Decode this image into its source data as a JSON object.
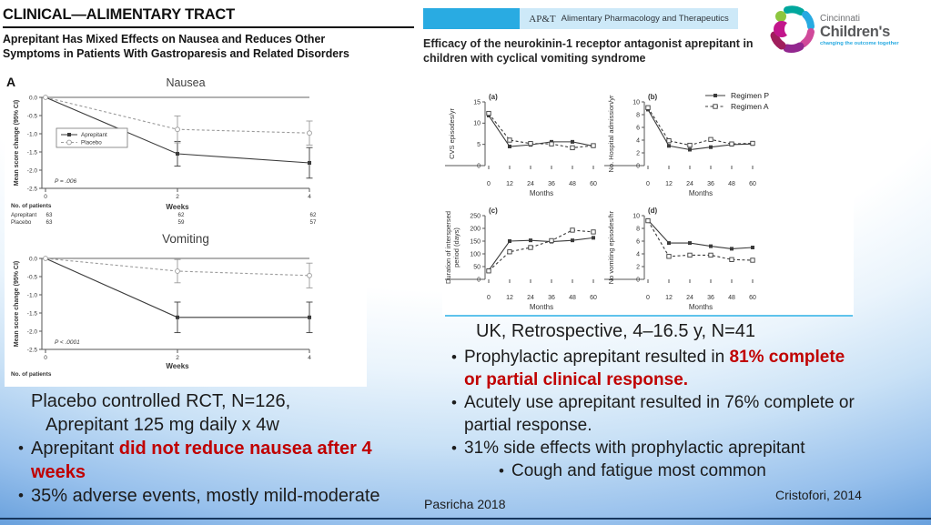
{
  "colors": {
    "accent_red": "#c00000",
    "banner_cyan": "#29abe2",
    "banner_light": "#cde9f8",
    "divider_blue": "#5fc3ec",
    "gradient_bottom": "#4f8cd1",
    "navy_line": "#17375e"
  },
  "left_panel": {
    "journal_header": "CLINICAL—ALIMENTARY TRACT",
    "article_title_line1": "Aprepitant Has Mixed Effects on Nausea and Reduces Other",
    "article_title_line2": "Symptoms in Patients With Gastroparesis and Related Disorders",
    "figure_label": "A",
    "nausea_title": "Nausea",
    "vomiting_title": "Vomiting",
    "summary_line1": "Placebo controlled RCT, N=126,",
    "summary_line2": "Aprepitant 125 mg daily x 4w",
    "bullets": [
      {
        "indent": 0,
        "segments": [
          {
            "text": "Aprepitant ",
            "style": "normal"
          },
          {
            "text": "did not reduce nausea after 4 weeks",
            "style": "red"
          }
        ]
      },
      {
        "indent": 0,
        "segments": [
          {
            "text": "35% adverse events, mostly mild-moderate",
            "style": "normal"
          }
        ]
      }
    ],
    "citation": "Pasricha 2018"
  },
  "right_panel": {
    "journal_banner": {
      "abbr": "AP&T",
      "name": "Alimentary Pharmacology and Therapeutics"
    },
    "logo": {
      "line1": "Cincinnati",
      "line2": "Children's",
      "tagline": "changing the outcome together"
    },
    "article_title": "Efficacy of the neurokinin-1 receptor antagonist aprepitant in children with cyclical vomiting syndrome",
    "figure_legend": [
      {
        "label": "Regimen P",
        "marker": "filled-square",
        "line": "solid"
      },
      {
        "label": "Regimen A",
        "marker": "open-square",
        "line": "dashed"
      }
    ],
    "study_line": "UK, Retrospective, 4–16.5 y, N=41",
    "bullets": [
      {
        "indent": 0,
        "segments": [
          {
            "text": "Prophylactic aprepitant resulted in ",
            "style": "normal"
          },
          {
            "text": "81% complete or partial clinical response.",
            "style": "red"
          }
        ]
      },
      {
        "indent": 0,
        "segments": [
          {
            "text": "Acutely use aprepitant resulted in 76% complete or partial response.",
            "style": "normal"
          }
        ]
      },
      {
        "indent": 0,
        "segments": [
          {
            "text": "31% side effects with prophylactic aprepitant",
            "style": "normal"
          }
        ]
      },
      {
        "indent": 1,
        "segments": [
          {
            "text": "Cough and fatigue most common",
            "style": "normal"
          }
        ]
      }
    ],
    "citation": "Cristofori, 2014"
  },
  "chart_data": [
    {
      "id": "nausea",
      "type": "line",
      "title": "Nausea",
      "xlabel": "Weeks",
      "ylabel": "Mean score change (95% CI)",
      "x": [
        0,
        2,
        4
      ],
      "ylim": [
        -2.5,
        0
      ],
      "yticks": [
        0,
        -0.5,
        -1,
        -1.5,
        -2,
        -2.5
      ],
      "p_value": "P = .006",
      "zero_line": true,
      "legend": true,
      "series": [
        {
          "name": "Aprepitant",
          "values": [
            0,
            -1.55,
            -1.8
          ],
          "ci": [
            0,
            0.34,
            0.42
          ],
          "line": "solid",
          "marker": "filled-square",
          "color": "#3b3b3b"
        },
        {
          "name": "Placebo",
          "values": [
            0,
            -0.88,
            -0.98
          ],
          "ci": [
            0,
            0.37,
            0.33
          ],
          "line": "dashed",
          "marker": "open-circle",
          "color": "#9a9a9a"
        }
      ],
      "patients": {
        "label": "No. of patients",
        "rows": [
          {
            "name": "Aprepitant",
            "counts": [
              63,
              62,
              62
            ]
          },
          {
            "name": "Placebo",
            "counts": [
              63,
              59,
              57
            ]
          }
        ]
      }
    },
    {
      "id": "vomiting",
      "type": "line",
      "title": "Vomiting",
      "xlabel": "Weeks",
      "ylabel": "Mean score change (95% CI)",
      "x": [
        0,
        2,
        4
      ],
      "ylim": [
        -2.5,
        0
      ],
      "yticks": [
        0,
        -0.5,
        -1,
        -1.5,
        -2,
        -2.5
      ],
      "p_value": "P < .0001",
      "zero_line": true,
      "legend": false,
      "series": [
        {
          "name": "Aprepitant",
          "values": [
            0,
            -1.62,
            -1.62
          ],
          "ci": [
            0,
            0.42,
            0.42
          ],
          "line": "solid",
          "marker": "filled-square",
          "color": "#3b3b3b"
        },
        {
          "name": "Placebo",
          "values": [
            0,
            -0.35,
            -0.47
          ],
          "ci": [
            0,
            0.32,
            0.34
          ],
          "line": "dashed",
          "marker": "open-circle",
          "color": "#9a9a9a"
        }
      ],
      "patients": {
        "label": "No. of patients",
        "rows": []
      }
    },
    {
      "id": "cvs-episodes",
      "type": "line",
      "panel": "(a)",
      "xlabel": "Months",
      "ylabel": "CVS episodes/yr",
      "x": [
        0,
        12,
        24,
        36,
        48,
        60
      ],
      "ylim": [
        0,
        15
      ],
      "yticks": [
        0,
        5,
        10,
        15
      ],
      "series": [
        {
          "name": "Regimen P",
          "values": [
            11.8,
            4.5,
            4.9,
            5.6,
            5.6,
            4.6
          ],
          "line": "solid",
          "marker": "filled-square",
          "color": "#3b3b3b"
        },
        {
          "name": "Regimen A",
          "values": [
            12.3,
            6,
            5.2,
            5.1,
            4.2,
            4.7
          ],
          "line": "dashed",
          "marker": "open-square",
          "color": "#3b3b3b"
        }
      ]
    },
    {
      "id": "hospital-admissions",
      "type": "line",
      "panel": "(b)",
      "xlabel": "Months",
      "ylabel": "No. Hospital admission/yr",
      "x": [
        0,
        12,
        24,
        36,
        48,
        60
      ],
      "ylim": [
        0,
        10
      ],
      "yticks": [
        0,
        2,
        4,
        6,
        8,
        10
      ],
      "series": [
        {
          "name": "Regimen P",
          "values": [
            8.8,
            3.1,
            2.5,
            2.9,
            3.3,
            3.4
          ],
          "line": "solid",
          "marker": "filled-square",
          "color": "#3b3b3b"
        },
        {
          "name": "Regimen A",
          "values": [
            9.1,
            3.9,
            3.2,
            4.1,
            3.4,
            3.5
          ],
          "line": "dashed",
          "marker": "open-square",
          "color": "#3b3b3b"
        }
      ]
    },
    {
      "id": "interspersed-duration",
      "type": "line",
      "panel": "(c)",
      "xlabel": "Months",
      "ylabel_lines": [
        "Duration of interspersed",
        "period (days)"
      ],
      "x": [
        0,
        12,
        24,
        36,
        48,
        60
      ],
      "ylim": [
        0,
        250
      ],
      "yticks": [
        0,
        50,
        100,
        150,
        200,
        250
      ],
      "series": [
        {
          "name": "Regimen P",
          "values": [
            35,
            150,
            153,
            148,
            153,
            163
          ],
          "line": "solid",
          "marker": "filled-square",
          "color": "#3b3b3b"
        },
        {
          "name": "Regimen A",
          "values": [
            33,
            108,
            125,
            152,
            193,
            186
          ],
          "line": "dashed",
          "marker": "open-square",
          "color": "#3b3b3b"
        }
      ]
    },
    {
      "id": "vomiting-episodes",
      "type": "line",
      "panel": "(d)",
      "xlabel": "Months",
      "ylabel": "No vomiting episodes/hr",
      "x": [
        0,
        12,
        24,
        36,
        48,
        60
      ],
      "ylim": [
        0,
        10
      ],
      "yticks": [
        0,
        2,
        4,
        6,
        8,
        10
      ],
      "series": [
        {
          "name": "Regimen P",
          "values": [
            9.3,
            5.7,
            5.7,
            5.2,
            4.8,
            5
          ],
          "line": "solid",
          "marker": "filled-square",
          "color": "#3b3b3b"
        },
        {
          "name": "Regimen A",
          "values": [
            9.2,
            3.6,
            3.8,
            3.8,
            3.1,
            3
          ],
          "line": "dashed",
          "marker": "open-square",
          "color": "#3b3b3b"
        }
      ]
    }
  ]
}
